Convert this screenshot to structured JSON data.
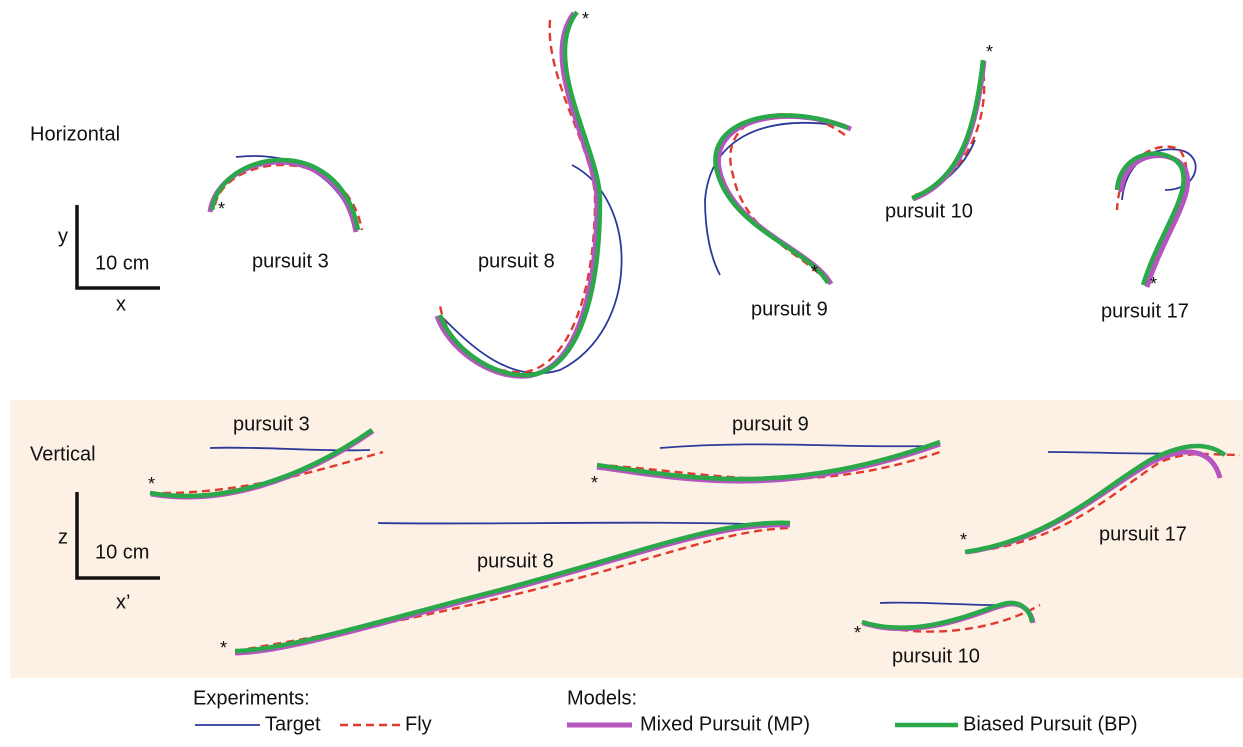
{
  "panels": [
    {
      "label": "Horizontal",
      "scale": {
        "axis_v": "y",
        "length": "10 cm",
        "axis_h": "x"
      },
      "trajectories": [
        "pursuit 3",
        "pursuit 8",
        "pursuit 9",
        "pursuit 10",
        "pursuit 17"
      ]
    },
    {
      "label": "Vertical",
      "scale": {
        "axis_v": "z",
        "length": "10 cm",
        "axis_h": "x’"
      },
      "trajectories": [
        "pursuit 3",
        "pursuit 9",
        "pursuit 8",
        "pursuit 17",
        "pursuit 10"
      ]
    }
  ],
  "start_marker": "*",
  "legend": {
    "experiments": {
      "title": "Experiments:",
      "items": [
        "Target",
        "Fly"
      ]
    },
    "models": {
      "title": "Models:",
      "items": [
        "Mixed Pursuit (MP)",
        "Biased Pursuit (BP)"
      ]
    }
  }
}
